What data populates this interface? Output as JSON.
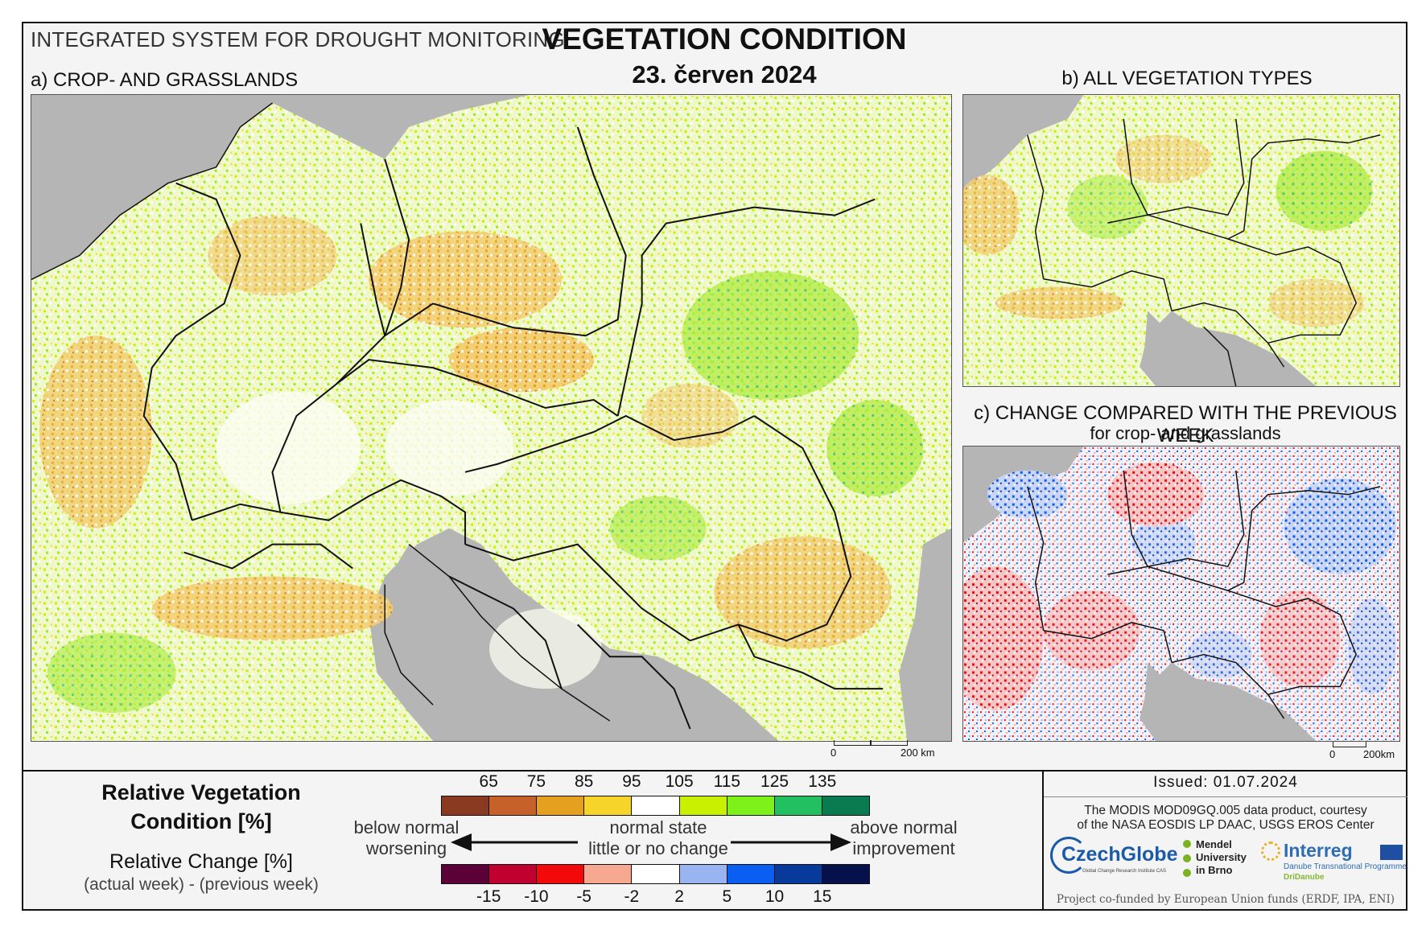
{
  "header": {
    "system_title": "INTEGRATED SYSTEM FOR DROUGHT MONITORING",
    "main_title": "VEGETATION CONDITION",
    "date": "23. červen 2024"
  },
  "panels": {
    "a_title": "a) CROP- AND GRASSLANDS",
    "b_title": "b) ALL VEGETATION TYPES",
    "c_title": "c) CHANGE COMPARED WITH THE PREVIOUS WEEK",
    "c_subtitle": "for crop- and grasslands"
  },
  "scalebars": {
    "a": {
      "start": "0",
      "end": "200 km"
    },
    "c": {
      "start": "0",
      "end": "200km"
    }
  },
  "legend": {
    "rvc_title_line1": "Relative Vegetation",
    "rvc_title_line2": "Condition [%]",
    "rc_title": "Relative Change [%]",
    "rc_subtitle": "(actual week) - (previous week)",
    "rvc_ticks": [
      "65",
      "75",
      "85",
      "95",
      "105",
      "115",
      "125",
      "135"
    ],
    "rvc_colors": [
      "#8b3a22",
      "#c7612a",
      "#e6a020",
      "#f6d42a",
      "#ffffff",
      "#c8f000",
      "#7ef01a",
      "#22c060",
      "#0a7a50"
    ],
    "rc_ticks": [
      "-15",
      "-10",
      "-5",
      "-2",
      "2",
      "5",
      "10",
      "15"
    ],
    "rc_colors": [
      "#5c0038",
      "#c0002e",
      "#f20a0a",
      "#f7a890",
      "#ffffff",
      "#9ab4f2",
      "#0a5ef2",
      "#083a9c",
      "#06104a"
    ],
    "left_label_line1": "below normal",
    "left_label_line2": "worsening",
    "center_label_line1": "normal state",
    "center_label_line2": "little or no change",
    "right_label_line1": "above normal",
    "right_label_line2": "improvement"
  },
  "footer": {
    "issued": "Issued: 01.07.2024",
    "credit_line1": "The MODIS MOD09GQ.005 data product, courtesy",
    "credit_line2": "of the NASA EOSDIS LP DAAC, USGS EROS Center",
    "czechglobe": "CzechGlobe",
    "czechglobe_sub": "Global Change Research Institute CAS",
    "mendel_line1": "Mendel",
    "mendel_line2": "University",
    "mendel_line3": "in Brno",
    "interreg": "Interreg",
    "interreg_sub1": "Danube Transnational Programme",
    "interreg_sub2": "DriDanube",
    "cofund": "Project co-funded by European Union funds (ERDF, IPA, ENI)"
  },
  "colors": {
    "sea_land_outside": "#b5b5b5",
    "border_lines": "#111111"
  }
}
